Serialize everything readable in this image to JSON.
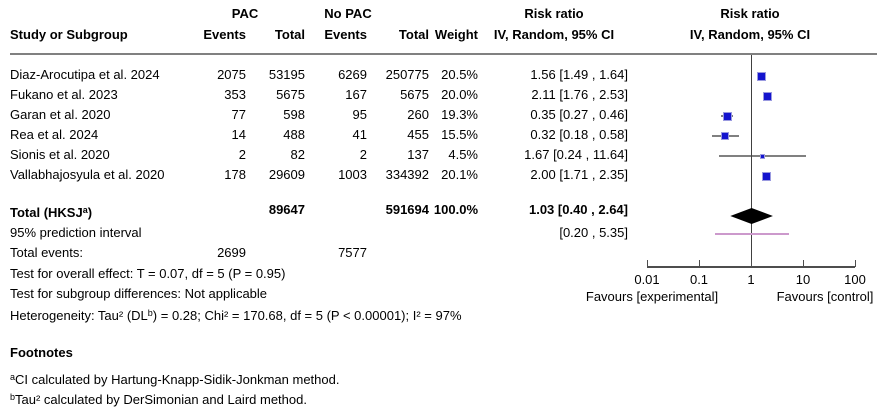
{
  "header": {
    "group1": "PAC",
    "group2": "No PAC",
    "col_study": "Study or Subgroup",
    "col_events": "Events",
    "col_total": "Total",
    "col_weight": "Weight",
    "rr_text_title": "Risk ratio",
    "rr_text_sub": "IV, Random, 95% CI",
    "rr_plot_title": "Risk ratio",
    "rr_plot_sub": "IV, Random, 95% CI"
  },
  "chart_data": {
    "type": "forest",
    "x_scale": "log10",
    "axis": {
      "ticks": [
        0.01,
        0.1,
        1,
        10,
        100
      ],
      "range": [
        0.01,
        100
      ]
    },
    "studies": [
      {
        "name": "Diaz-Arocutipa et al. 2024",
        "events_pac": "2075",
        "total_pac": "53195",
        "events_nopac": "6269",
        "total_nopac": "250775",
        "weight": "20.5%",
        "rr": 1.56,
        "ci_low": 1.49,
        "ci_high": 1.64,
        "label": "1.56 [1.49 , 1.64]"
      },
      {
        "name": "Fukano et al. 2023",
        "events_pac": "353",
        "total_pac": "5675",
        "events_nopac": "167",
        "total_nopac": "5675",
        "weight": "20.0%",
        "rr": 2.11,
        "ci_low": 1.76,
        "ci_high": 2.53,
        "label": "2.11 [1.76 , 2.53]"
      },
      {
        "name": "Garan et al. 2020",
        "events_pac": "77",
        "total_pac": "598",
        "events_nopac": "95",
        "total_nopac": "260",
        "weight": "19.3%",
        "rr": 0.35,
        "ci_low": 0.27,
        "ci_high": 0.46,
        "label": "0.35 [0.27 , 0.46]"
      },
      {
        "name": "Rea et al. 2024",
        "events_pac": "14",
        "total_pac": "488",
        "events_nopac": "41",
        "total_nopac": "455",
        "weight": "15.5%",
        "rr": 0.32,
        "ci_low": 0.18,
        "ci_high": 0.58,
        "label": "0.32 [0.18 , 0.58]"
      },
      {
        "name": "Sionis et al. 2020",
        "events_pac": "2",
        "total_pac": "82",
        "events_nopac": "2",
        "total_nopac": "137",
        "weight": "4.5%",
        "rr": 1.67,
        "ci_low": 0.24,
        "ci_high": 11.64,
        "label": "1.67 [0.24 , 11.64]"
      },
      {
        "name": "Vallabhajosyula et al. 2020",
        "events_pac": "178",
        "total_pac": "29609",
        "events_nopac": "1003",
        "total_nopac": "334392",
        "weight": "20.1%",
        "rr": 2.0,
        "ci_low": 1.71,
        "ci_high": 2.35,
        "label": "2.00 [1.71 , 2.35]"
      }
    ],
    "total": {
      "rr": 1.03,
      "ci_low": 0.4,
      "ci_high": 2.64
    },
    "prediction_interval": {
      "low": 0.2,
      "high": 5.35
    }
  },
  "summary": {
    "total_label_pre": "Total (HKSJ",
    "total_label_sup": "a",
    "total_label_post": ")",
    "total_pac_n": "89647",
    "total_nopac_n": "591694",
    "total_weight": "100.0%",
    "total_rr_label": "1.03 [0.40 , 2.64]",
    "prediction_label": "95% prediction interval",
    "prediction_ci_label": "[0.20 , 5.35]",
    "total_events_label": "Total events:",
    "total_events_pac": "2699",
    "total_events_nopac": "7577"
  },
  "stats": {
    "overall_effect": "Test for overall effect: T = 0.07, df = 5 (P = 0.95)",
    "subgroup_diff": "Test for subgroup differences: Not applicable",
    "heterogeneity_pre": "Heterogeneity: Tau² (DL",
    "heterogeneity_sup": "b",
    "heterogeneity_post": ") = 0.28; Chi² = 170.68, df = 5 (P < 0.00001); I² = 97%"
  },
  "axis_labels": {
    "favours_left": "Favours [experimental]",
    "favours_right": "Favours [control]"
  },
  "footnotes": {
    "title": "Footnotes",
    "a_sup": "a",
    "a_text": "CI calculated by Hartung-Knapp-Sidik-Jonkman method.",
    "b_sup": "b",
    "b_text": "Tau² calculated by DerSimonian and Laird method."
  },
  "colors": {
    "marker": "#1414CE",
    "marker_halo": "#9a9ae0",
    "ci_line": "#808080",
    "diamond": "#000000",
    "prediction": "#CC99CC",
    "rule": "#808080",
    "axis": "#4d4d4d",
    "vline": "#404040"
  }
}
